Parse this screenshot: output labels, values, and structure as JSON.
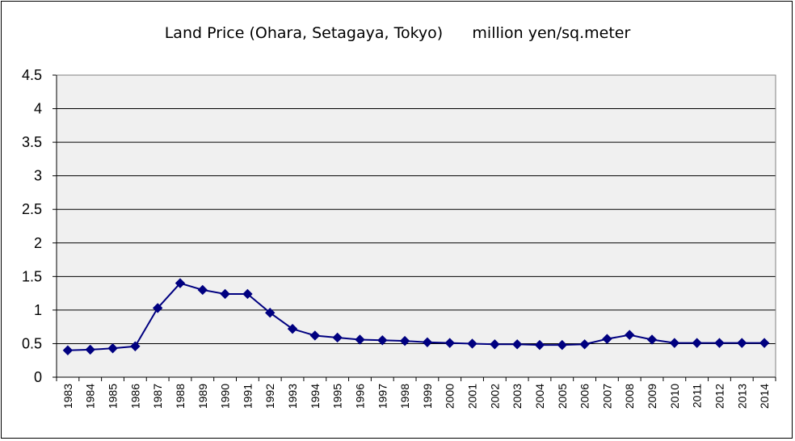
{
  "chart_data": {
    "type": "line",
    "title": "Land Price (Ohara, Setagaya, Tokyo)      million yen/sq.meter",
    "xlabel": "",
    "ylabel": "",
    "ylim": [
      0,
      4.5
    ],
    "yticks": [
      "0",
      "0.5",
      "1",
      "1.5",
      "2",
      "2.5",
      "3",
      "3.5",
      "4",
      "4.5"
    ],
    "grid": true,
    "legend": "none",
    "colors": {
      "line": "#000080",
      "marker": "#000080",
      "plot_bg": "#f0f0f0",
      "grid": "#000000"
    },
    "categories": [
      "1983",
      "1984",
      "1985",
      "1986",
      "1987",
      "1988",
      "1989",
      "1990",
      "1991",
      "1992",
      "1993",
      "1994",
      "1995",
      "1996",
      "1997",
      "1998",
      "1999",
      "2000",
      "2001",
      "2002",
      "2003",
      "2004",
      "2005",
      "2006",
      "2007",
      "2008",
      "2009",
      "2010",
      "2011",
      "2012",
      "2013",
      "2014"
    ],
    "series": [
      {
        "values": [
          0.4,
          0.41,
          0.43,
          0.46,
          1.03,
          1.4,
          1.3,
          1.24,
          1.24,
          0.96,
          0.72,
          0.62,
          0.59,
          0.56,
          0.55,
          0.54,
          0.52,
          0.51,
          0.5,
          0.49,
          0.49,
          0.48,
          0.48,
          0.49,
          0.57,
          0.63,
          0.56,
          0.51,
          0.51,
          0.51,
          0.51,
          0.51
        ]
      }
    ]
  }
}
